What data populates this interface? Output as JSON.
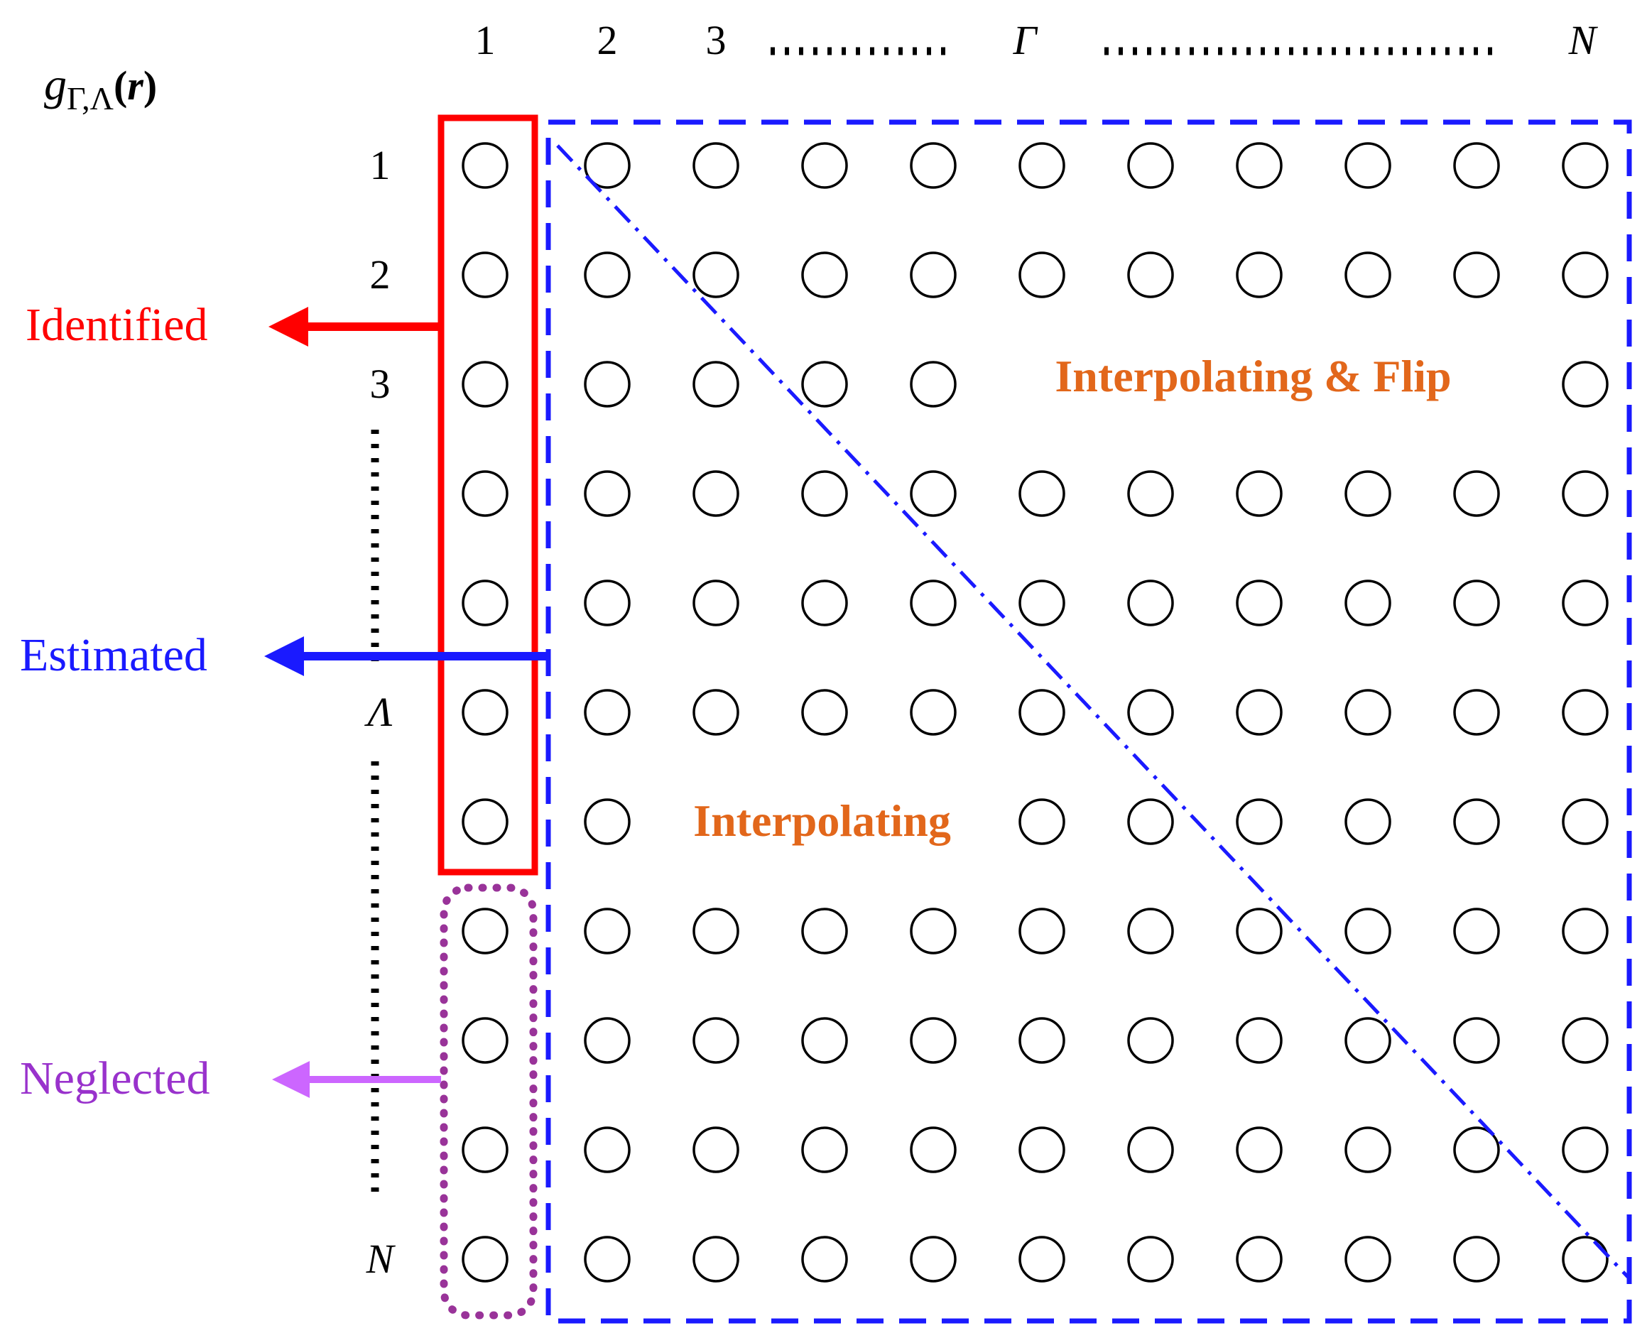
{
  "title_formula": {
    "base": "g",
    "subscript": "Γ,Λ",
    "open": "(",
    "arg": "r",
    "close": ")"
  },
  "column_labels": {
    "first": "1",
    "second": "2",
    "third": "3",
    "gamma": "Γ",
    "last": "N"
  },
  "row_labels": {
    "first": "1",
    "second": "2",
    "third": "3",
    "lambda": "Λ",
    "last": "N"
  },
  "annotations": {
    "identified": {
      "label": "Identified",
      "color": "#FF0000"
    },
    "estimated": {
      "label": "Estimated",
      "color": "#1A1AFF"
    },
    "neglected": {
      "label": "Neglected",
      "color": "#9932CC",
      "box_color": "#993399",
      "arrow_color": "#CC66FF"
    },
    "interpolating_flip": {
      "label": "Interpolating & Flip",
      "color": "#E2671B"
    },
    "interpolating": {
      "label": "Interpolating",
      "color": "#E2671B"
    }
  },
  "grid": {
    "rows": 11,
    "cols": 11,
    "hidden_cells": [
      [
        3,
        6
      ],
      [
        3,
        7
      ],
      [
        3,
        8
      ],
      [
        3,
        9
      ],
      [
        3,
        10
      ],
      [
        7,
        3
      ],
      [
        7,
        4
      ],
      [
        7,
        5
      ]
    ]
  },
  "colors": {
    "identified_box": "#FF0000",
    "estimated_box": "#1A1AFF",
    "diagonal_line": "#1A1AFF",
    "neglected_box": "#993399",
    "neglected_arrow": "#CC66FF",
    "circle_stroke": "#000000",
    "dotted_guides": "#000000"
  }
}
